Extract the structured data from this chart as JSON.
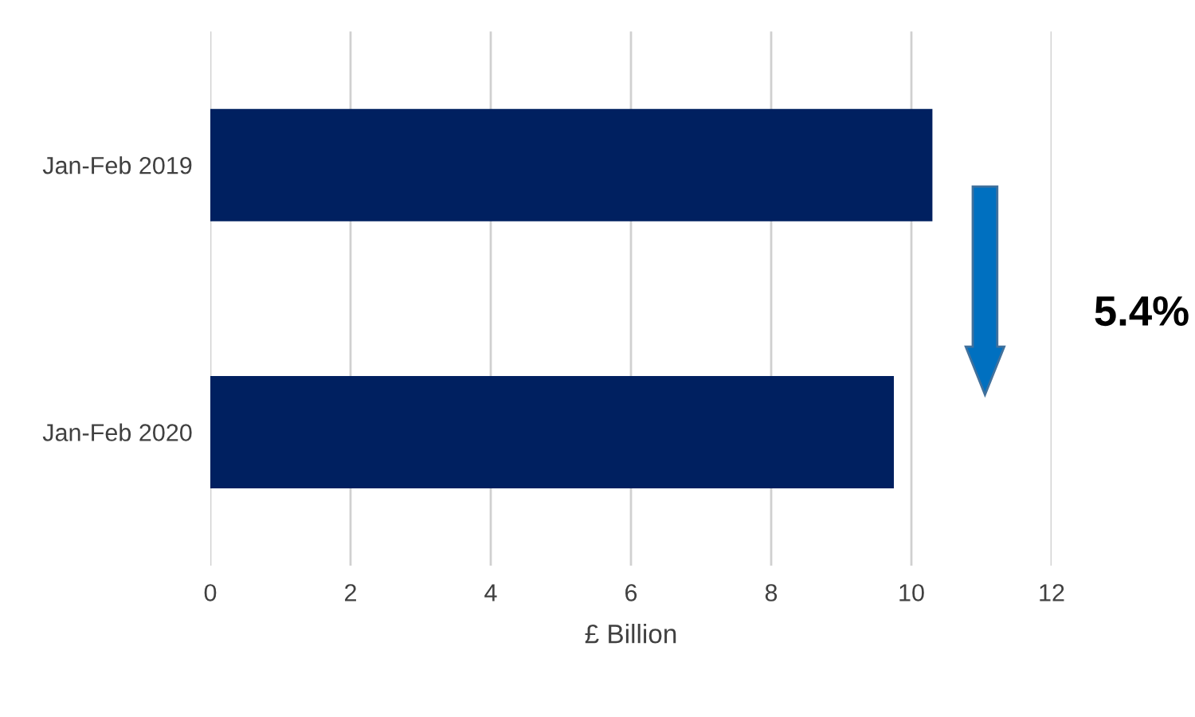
{
  "chart_data": {
    "type": "bar",
    "orientation": "horizontal",
    "categories": [
      "Jan-Feb 2019",
      "Jan-Feb 2020"
    ],
    "values": [
      10.3,
      9.75
    ],
    "color": "#002060",
    "xlabel": "£ Billion",
    "xlim": [
      0,
      12
    ],
    "xticks": [
      0,
      2,
      4,
      6,
      8,
      10,
      12
    ],
    "grid": "x",
    "annotations": [
      "5.4%"
    ]
  }
}
